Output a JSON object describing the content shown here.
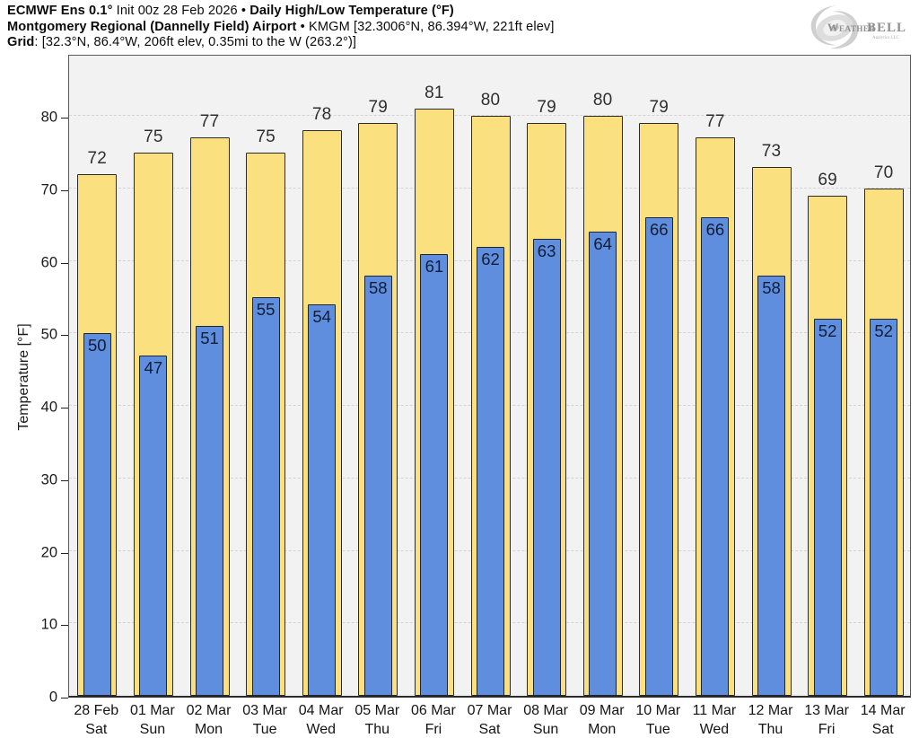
{
  "header": {
    "lines": [
      {
        "segments": [
          {
            "text": "ECMWF Ens 0.1°",
            "bold": true
          },
          {
            "text": " Init 00z 28 Feb 2026 • ",
            "bold": false
          },
          {
            "text": "Daily High/Low Temperature (°F)",
            "bold": true
          }
        ]
      },
      {
        "segments": [
          {
            "text": "Montgomery Regional (Dannelly Field) Airport",
            "bold": true
          },
          {
            "text": " • KMGM [32.3006°N, 86.394°W, 221ft elev]",
            "bold": false
          }
        ]
      },
      {
        "segments": [
          {
            "text": "Grid",
            "bold": true
          },
          {
            "text": ": [32.3°N, 86.4°W, 206ft elev, 0.35mi to the W (263.2°)]",
            "bold": false
          }
        ]
      }
    ]
  },
  "logo": {
    "brand_left": "Weather",
    "brand_right": "BELL",
    "sub": "Analytics LLC"
  },
  "chart_data": {
    "type": "bar",
    "title": "ECMWF Ens 0.1° Init 00z 28 Feb 2026 • Daily High/Low Temperature (°F)",
    "subtitle": "Montgomery Regional (Dannelly Field) Airport • KMGM [32.3006°N, 86.394°W, 221ft elev]",
    "grid_note": "Grid: [32.3°N, 86.4°W, 206ft elev, 0.35mi to the W (263.2°)]",
    "categories": [
      {
        "date": "28 Feb",
        "day": "Sat"
      },
      {
        "date": "01 Mar",
        "day": "Sun"
      },
      {
        "date": "02 Mar",
        "day": "Mon"
      },
      {
        "date": "03 Mar",
        "day": "Tue"
      },
      {
        "date": "04 Mar",
        "day": "Wed"
      },
      {
        "date": "05 Mar",
        "day": "Thu"
      },
      {
        "date": "06 Mar",
        "day": "Fri"
      },
      {
        "date": "07 Mar",
        "day": "Sat"
      },
      {
        "date": "08 Mar",
        "day": "Sun"
      },
      {
        "date": "09 Mar",
        "day": "Mon"
      },
      {
        "date": "10 Mar",
        "day": "Tue"
      },
      {
        "date": "11 Mar",
        "day": "Wed"
      },
      {
        "date": "12 Mar",
        "day": "Thu"
      },
      {
        "date": "13 Mar",
        "day": "Fri"
      },
      {
        "date": "14 Mar",
        "day": "Sat"
      }
    ],
    "series": [
      {
        "name": "High",
        "color": "#fae07e",
        "edge": "#2b2b2b",
        "values": [
          72,
          75,
          77,
          75,
          78,
          79,
          81,
          80,
          79,
          80,
          79,
          77,
          73,
          69,
          70
        ]
      },
      {
        "name": "Low",
        "color": "#5e8edd",
        "edge": "#1d2433",
        "values": [
          50,
          47,
          51,
          55,
          54,
          58,
          61,
          62,
          63,
          64,
          66,
          66,
          58,
          52,
          52
        ]
      }
    ],
    "xlabel": "",
    "ylabel": "Temperature [°F]",
    "ylim": [
      0,
      88.7
    ],
    "yticks": [
      0,
      10,
      20,
      30,
      40,
      50,
      60,
      70,
      80
    ],
    "grid": true,
    "legend_position": "none",
    "plot_bg": "#f2f2f2",
    "grid_color": "#d4d4d4"
  }
}
